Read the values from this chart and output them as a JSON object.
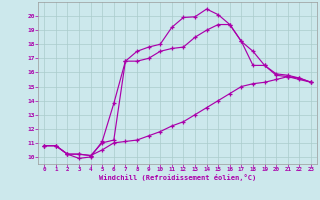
{
  "background_color": "#cce8ec",
  "grid_color": "#aacccc",
  "line_color": "#aa00aa",
  "marker": "+",
  "xlim": [
    -0.5,
    23.5
  ],
  "ylim": [
    9.5,
    21.0
  ],
  "xticks": [
    0,
    1,
    2,
    3,
    4,
    5,
    6,
    7,
    8,
    9,
    10,
    11,
    12,
    13,
    14,
    15,
    16,
    17,
    18,
    19,
    20,
    21,
    22,
    23
  ],
  "yticks": [
    10,
    11,
    12,
    13,
    14,
    15,
    16,
    17,
    18,
    19,
    20
  ],
  "xlabel": "Windchill (Refroidissement éolien,°C)",
  "curve1_x": [
    0,
    1,
    2,
    3,
    4,
    5,
    6,
    7,
    8,
    9,
    10,
    11,
    12,
    13,
    14,
    15,
    16,
    17,
    18,
    19,
    20,
    21,
    22,
    23
  ],
  "curve1_y": [
    10.8,
    10.8,
    10.2,
    9.9,
    10.0,
    11.1,
    13.8,
    16.8,
    17.5,
    17.8,
    18.0,
    19.2,
    19.9,
    19.95,
    20.5,
    20.1,
    19.4,
    18.2,
    16.5,
    16.5,
    15.9,
    15.8,
    15.6,
    15.3
  ],
  "curve2_x": [
    0,
    1,
    2,
    3,
    4,
    5,
    6,
    7,
    8,
    9,
    10,
    11,
    12,
    13,
    14,
    15,
    16,
    17,
    18,
    19,
    20,
    21,
    22,
    23
  ],
  "curve2_y": [
    10.8,
    10.8,
    10.2,
    10.2,
    10.1,
    11.0,
    11.2,
    16.8,
    16.8,
    17.0,
    17.5,
    17.7,
    17.8,
    18.5,
    19.0,
    19.4,
    19.4,
    18.2,
    17.5,
    16.5,
    15.8,
    15.7,
    15.5,
    15.3
  ],
  "curve3_x": [
    0,
    1,
    2,
    3,
    4,
    5,
    6,
    7,
    8,
    9,
    10,
    11,
    12,
    13,
    14,
    15,
    16,
    17,
    18,
    19,
    20,
    21,
    22,
    23
  ],
  "curve3_y": [
    10.8,
    10.8,
    10.2,
    10.2,
    10.1,
    10.5,
    11.0,
    11.1,
    11.2,
    11.5,
    11.8,
    12.2,
    12.5,
    13.0,
    13.5,
    14.0,
    14.5,
    15.0,
    15.2,
    15.3,
    15.5,
    15.7,
    15.6,
    15.3
  ]
}
